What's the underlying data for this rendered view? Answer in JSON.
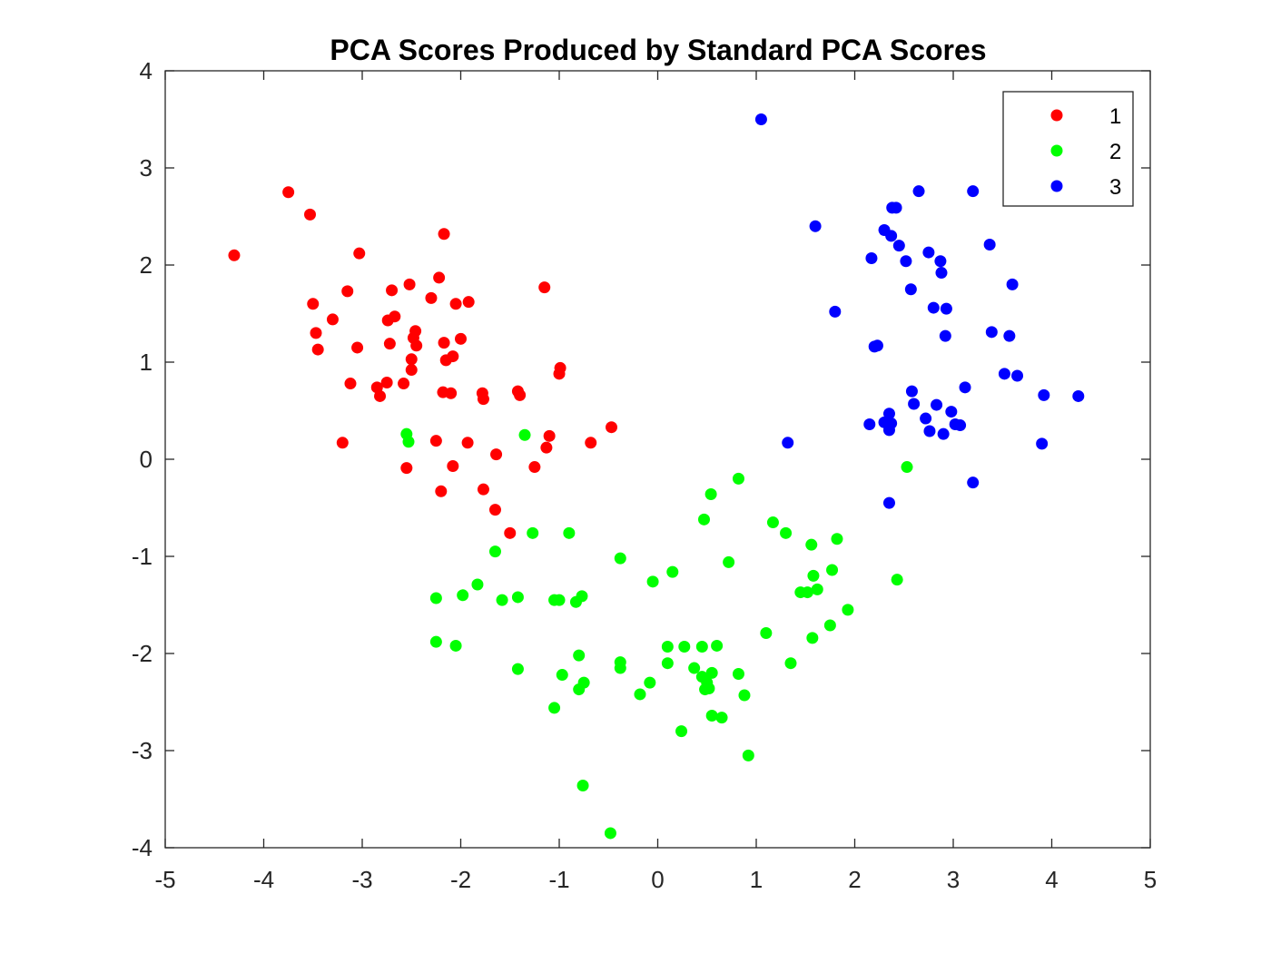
{
  "chart_data": {
    "type": "scatter",
    "title": "PCA Scores Produced by Standard PCA Scores",
    "xlabel": "",
    "ylabel": "",
    "xlim": [
      -5,
      5
    ],
    "ylim": [
      -4,
      4
    ],
    "xticks": [
      -5,
      -4,
      -3,
      -2,
      -1,
      0,
      1,
      2,
      3,
      4,
      5
    ],
    "yticks": [
      -4,
      -3,
      -2,
      -1,
      0,
      1,
      2,
      3,
      4
    ],
    "grid": false,
    "legend_position": "top-right",
    "series": [
      {
        "name": "1",
        "color": "#ff0000",
        "points": [
          [
            -4.3,
            2.1
          ],
          [
            -3.75,
            2.75
          ],
          [
            -3.53,
            2.52
          ],
          [
            -3.5,
            1.6
          ],
          [
            -3.47,
            1.3
          ],
          [
            -3.45,
            1.13
          ],
          [
            -3.3,
            1.44
          ],
          [
            -3.15,
            1.73
          ],
          [
            -3.12,
            0.78
          ],
          [
            -3.05,
            1.15
          ],
          [
            -3.03,
            2.12
          ],
          [
            -3.2,
            0.17
          ],
          [
            -2.85,
            0.74
          ],
          [
            -2.82,
            0.65
          ],
          [
            -2.75,
            0.79
          ],
          [
            -2.74,
            1.43
          ],
          [
            -2.72,
            1.19
          ],
          [
            -2.7,
            1.74
          ],
          [
            -2.67,
            1.47
          ],
          [
            -2.58,
            0.78
          ],
          [
            -2.52,
            1.8
          ],
          [
            -2.5,
            1.03
          ],
          [
            -2.5,
            0.92
          ],
          [
            -2.48,
            1.25
          ],
          [
            -2.46,
            1.32
          ],
          [
            -2.45,
            1.17
          ],
          [
            -2.3,
            1.66
          ],
          [
            -2.22,
            1.87
          ],
          [
            -2.17,
            2.32
          ],
          [
            -2.18,
            0.69
          ],
          [
            -2.17,
            1.2
          ],
          [
            -2.15,
            1.02
          ],
          [
            -2.1,
            0.68
          ],
          [
            -2.08,
            1.06
          ],
          [
            -2.05,
            1.6
          ],
          [
            -2.0,
            1.24
          ],
          [
            -1.92,
            1.62
          ],
          [
            -2.25,
            0.19
          ],
          [
            -2.2,
            -0.33
          ],
          [
            -2.08,
            -0.07
          ],
          [
            -2.55,
            -0.09
          ],
          [
            -1.93,
            0.17
          ],
          [
            -1.78,
            0.68
          ],
          [
            -1.77,
            0.62
          ],
          [
            -1.77,
            -0.31
          ],
          [
            -1.65,
            -0.52
          ],
          [
            -1.64,
            0.05
          ],
          [
            -1.5,
            -0.76
          ],
          [
            -1.42,
            0.7
          ],
          [
            -1.4,
            0.66
          ],
          [
            -1.25,
            -0.08
          ],
          [
            -1.15,
            1.77
          ],
          [
            -1.13,
            0.12
          ],
          [
            -1.1,
            0.24
          ],
          [
            -1.0,
            0.88
          ],
          [
            -0.99,
            0.94
          ],
          [
            -0.68,
            0.17
          ],
          [
            -0.47,
            0.33
          ]
        ]
      },
      {
        "name": "2",
        "color": "#00ff00",
        "points": [
          [
            -2.55,
            0.26
          ],
          [
            -2.53,
            0.18
          ],
          [
            -1.35,
            0.25
          ],
          [
            -2.25,
            -1.43
          ],
          [
            -2.25,
            -1.88
          ],
          [
            -2.05,
            -1.92
          ],
          [
            -1.98,
            -1.4
          ],
          [
            -1.83,
            -1.29
          ],
          [
            -1.65,
            -0.95
          ],
          [
            -1.58,
            -1.45
          ],
          [
            -1.42,
            -1.42
          ],
          [
            -1.42,
            -2.16
          ],
          [
            -1.27,
            -0.76
          ],
          [
            -1.05,
            -1.45
          ],
          [
            -1.0,
            -1.45
          ],
          [
            -0.9,
            -0.76
          ],
          [
            -0.83,
            -1.47
          ],
          [
            -0.77,
            -1.41
          ],
          [
            -1.05,
            -2.56
          ],
          [
            -0.97,
            -2.22
          ],
          [
            -0.8,
            -2.02
          ],
          [
            -0.8,
            -2.37
          ],
          [
            -0.75,
            -2.3
          ],
          [
            -0.76,
            -3.36
          ],
          [
            -0.48,
            -3.85
          ],
          [
            -0.38,
            -1.02
          ],
          [
            -0.38,
            -2.09
          ],
          [
            -0.38,
            -2.15
          ],
          [
            -0.18,
            -2.42
          ],
          [
            -0.08,
            -2.3
          ],
          [
            -0.05,
            -1.26
          ],
          [
            0.1,
            -2.1
          ],
          [
            0.1,
            -1.93
          ],
          [
            0.15,
            -1.16
          ],
          [
            0.24,
            -2.8
          ],
          [
            0.27,
            -1.93
          ],
          [
            0.37,
            -2.15
          ],
          [
            0.45,
            -2.24
          ],
          [
            0.45,
            -1.93
          ],
          [
            0.47,
            -0.62
          ],
          [
            0.48,
            -2.37
          ],
          [
            0.5,
            -2.3
          ],
          [
            0.52,
            -2.36
          ],
          [
            0.54,
            -0.36
          ],
          [
            0.55,
            -2.64
          ],
          [
            0.55,
            -2.2
          ],
          [
            0.6,
            -1.92
          ],
          [
            0.65,
            -2.66
          ],
          [
            0.72,
            -1.06
          ],
          [
            0.82,
            -2.21
          ],
          [
            0.82,
            -0.2
          ],
          [
            0.88,
            -2.43
          ],
          [
            0.92,
            -3.05
          ],
          [
            1.1,
            -1.79
          ],
          [
            1.17,
            -0.65
          ],
          [
            1.3,
            -0.76
          ],
          [
            1.35,
            -2.1
          ],
          [
            1.45,
            -1.37
          ],
          [
            1.52,
            -1.37
          ],
          [
            1.56,
            -0.88
          ],
          [
            1.57,
            -1.84
          ],
          [
            1.58,
            -1.2
          ],
          [
            1.62,
            -1.34
          ],
          [
            1.75,
            -1.71
          ],
          [
            1.77,
            -1.14
          ],
          [
            1.82,
            -0.82
          ],
          [
            1.93,
            -1.55
          ],
          [
            2.43,
            -1.24
          ],
          [
            2.53,
            -0.08
          ]
        ]
      },
      {
        "name": "3",
        "color": "#0000ff",
        "points": [
          [
            1.05,
            3.5
          ],
          [
            1.32,
            0.17
          ],
          [
            1.6,
            2.4
          ],
          [
            1.8,
            1.52
          ],
          [
            2.15,
            0.36
          ],
          [
            2.17,
            2.07
          ],
          [
            2.2,
            1.16
          ],
          [
            2.23,
            1.17
          ],
          [
            2.3,
            0.38
          ],
          [
            2.3,
            2.36
          ],
          [
            2.35,
            -0.45
          ],
          [
            2.35,
            0.3
          ],
          [
            2.35,
            0.47
          ],
          [
            2.37,
            0.37
          ],
          [
            2.37,
            2.3
          ],
          [
            2.38,
            2.59
          ],
          [
            2.42,
            2.59
          ],
          [
            2.45,
            2.2
          ],
          [
            2.52,
            2.04
          ],
          [
            2.57,
            1.75
          ],
          [
            2.58,
            0.7
          ],
          [
            2.6,
            0.57
          ],
          [
            2.65,
            2.76
          ],
          [
            2.72,
            0.42
          ],
          [
            2.75,
            2.13
          ],
          [
            2.76,
            0.29
          ],
          [
            2.8,
            1.56
          ],
          [
            2.83,
            0.56
          ],
          [
            2.87,
            2.04
          ],
          [
            2.88,
            1.92
          ],
          [
            2.9,
            0.26
          ],
          [
            2.92,
            1.27
          ],
          [
            2.93,
            1.55
          ],
          [
            2.98,
            0.49
          ],
          [
            3.02,
            0.36
          ],
          [
            3.07,
            0.35
          ],
          [
            3.12,
            0.74
          ],
          [
            3.2,
            2.76
          ],
          [
            3.2,
            -0.24
          ],
          [
            3.37,
            2.21
          ],
          [
            3.39,
            1.31
          ],
          [
            3.52,
            0.88
          ],
          [
            3.57,
            1.27
          ],
          [
            3.6,
            1.8
          ],
          [
            3.65,
            0.86
          ],
          [
            3.9,
            0.16
          ],
          [
            3.92,
            0.66
          ],
          [
            4.27,
            0.65
          ]
        ]
      }
    ]
  }
}
